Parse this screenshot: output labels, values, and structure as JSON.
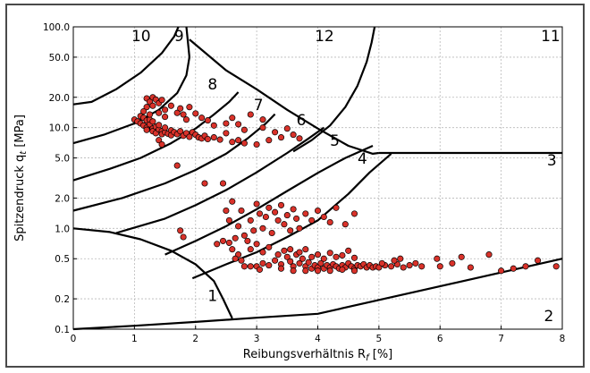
{
  "chart_data": {
    "type": "scatter",
    "title": "",
    "xlabel": "Reibungsverhältnis R",
    "xlabel_sub": "f",
    "xlabel_unit": " [%]",
    "ylabel": "Spitzendruck q",
    "ylabel_sub": "t",
    "ylabel_unit": " [MPa]",
    "xlim": [
      0,
      8
    ],
    "ylim": [
      0.1,
      100
    ],
    "yscale": "log",
    "grid": true,
    "x_ticks": [
      "0",
      "1",
      "2",
      "3",
      "4",
      "5",
      "6",
      "7",
      "8"
    ],
    "y_ticks": [
      "0.1",
      "0.2",
      "0.5",
      "1.0",
      "2.0",
      "5.0",
      "10.0",
      "20.0",
      "50.0",
      "100.0"
    ],
    "marker_color": "#d9322a",
    "zone_labels": [
      "1",
      "2",
      "3",
      "4",
      "5",
      "6",
      "7",
      "8",
      "9",
      "10",
      "11",
      "12"
    ],
    "points": [
      [
        1.0,
        12.0
      ],
      [
        1.05,
        11.5
      ],
      [
        1.1,
        11.0
      ],
      [
        1.1,
        13.0
      ],
      [
        1.15,
        10.5
      ],
      [
        1.15,
        12.5
      ],
      [
        1.2,
        11.8
      ],
      [
        1.2,
        10.0
      ],
      [
        1.2,
        9.5
      ],
      [
        1.25,
        10.8
      ],
      [
        1.25,
        12.0
      ],
      [
        1.3,
        11.5
      ],
      [
        1.3,
        9.8
      ],
      [
        1.3,
        9.2
      ],
      [
        1.35,
        10.2
      ],
      [
        1.35,
        8.8
      ],
      [
        1.4,
        9.6
      ],
      [
        1.4,
        10.6
      ],
      [
        1.45,
        9.2
      ],
      [
        1.45,
        8.6
      ],
      [
        1.5,
        9.0
      ],
      [
        1.5,
        10.0
      ],
      [
        1.55,
        8.7
      ],
      [
        1.6,
        9.4
      ],
      [
        1.6,
        8.4
      ],
      [
        1.65,
        9.0
      ],
      [
        1.7,
        8.6
      ],
      [
        1.75,
        9.2
      ],
      [
        1.8,
        8.3
      ],
      [
        1.85,
        8.8
      ],
      [
        1.9,
        8.1
      ],
      [
        1.95,
        9.0
      ],
      [
        2.0,
        8.5
      ],
      [
        2.05,
        8.0
      ],
      [
        2.1,
        7.8
      ],
      [
        2.15,
        8.3
      ],
      [
        2.2,
        7.7
      ],
      [
        2.3,
        8.0
      ],
      [
        2.4,
        7.6
      ],
      [
        2.5,
        8.8
      ],
      [
        2.6,
        7.2
      ],
      [
        2.7,
        7.5
      ],
      [
        2.8,
        7.0
      ],
      [
        3.0,
        6.8
      ],
      [
        3.2,
        7.5
      ],
      [
        3.4,
        8.0
      ],
      [
        3.6,
        8.5
      ],
      [
        3.7,
        7.8
      ],
      [
        1.2,
        19.5
      ],
      [
        1.25,
        18.0
      ],
      [
        1.3,
        20.0
      ],
      [
        1.35,
        19.0
      ],
      [
        1.4,
        17.5
      ],
      [
        1.45,
        18.8
      ],
      [
        1.3,
        16.5
      ],
      [
        1.2,
        16.0
      ],
      [
        1.15,
        14.5
      ],
      [
        1.5,
        15.0
      ],
      [
        1.6,
        16.5
      ],
      [
        1.7,
        14.0
      ],
      [
        1.75,
        15.5
      ],
      [
        1.8,
        13.5
      ],
      [
        1.9,
        16.0
      ],
      [
        2.0,
        13.8
      ],
      [
        2.1,
        12.5
      ],
      [
        1.4,
        14.0
      ],
      [
        1.25,
        13.5
      ],
      [
        1.5,
        12.8
      ],
      [
        1.85,
        12.0
      ],
      [
        2.2,
        11.8
      ],
      [
        2.3,
        10.5
      ],
      [
        2.5,
        11.0
      ],
      [
        2.6,
        12.5
      ],
      [
        2.7,
        10.8
      ],
      [
        2.8,
        9.5
      ],
      [
        3.1,
        10.0
      ],
      [
        3.3,
        9.0
      ],
      [
        3.5,
        9.8
      ],
      [
        3.1,
        12.0
      ],
      [
        2.9,
        13.5
      ],
      [
        1.4,
        7.5
      ],
      [
        1.45,
        6.8
      ],
      [
        1.7,
        4.2
      ],
      [
        2.15,
        2.8
      ],
      [
        1.75,
        0.95
      ],
      [
        1.8,
        0.82
      ],
      [
        2.45,
        2.8
      ],
      [
        2.5,
        1.5
      ],
      [
        2.55,
        1.2
      ],
      [
        2.6,
        1.85
      ],
      [
        2.7,
        1.05
      ],
      [
        2.75,
        1.5
      ],
      [
        2.8,
        0.85
      ],
      [
        2.85,
        0.75
      ],
      [
        2.9,
        1.2
      ],
      [
        2.95,
        0.95
      ],
      [
        3.0,
        1.75
      ],
      [
        3.05,
        1.4
      ],
      [
        3.1,
        1.0
      ],
      [
        3.15,
        1.3
      ],
      [
        3.2,
        1.6
      ],
      [
        3.25,
        0.9
      ],
      [
        3.3,
        1.45
      ],
      [
        3.35,
        1.2
      ],
      [
        3.4,
        1.7
      ],
      [
        3.45,
        1.1
      ],
      [
        3.5,
        1.35
      ],
      [
        3.55,
        0.95
      ],
      [
        3.6,
        1.55
      ],
      [
        3.65,
        1.25
      ],
      [
        3.7,
        1.0
      ],
      [
        3.8,
        1.4
      ],
      [
        3.9,
        1.2
      ],
      [
        4.0,
        1.5
      ],
      [
        4.1,
        1.3
      ],
      [
        4.2,
        1.15
      ],
      [
        4.3,
        1.6
      ],
      [
        4.45,
        1.1
      ],
      [
        4.6,
        1.4
      ],
      [
        2.65,
        0.8
      ],
      [
        2.55,
        0.72
      ],
      [
        2.6,
        0.62
      ],
      [
        2.7,
        0.55
      ],
      [
        2.75,
        0.48
      ],
      [
        2.65,
        0.5
      ],
      [
        2.9,
        0.62
      ],
      [
        3.0,
        0.7
      ],
      [
        3.1,
        0.58
      ],
      [
        3.2,
        0.65
      ],
      [
        2.45,
        0.75
      ],
      [
        2.35,
        0.7
      ],
      [
        3.0,
        0.42
      ],
      [
        3.1,
        0.45
      ],
      [
        3.2,
        0.43
      ],
      [
        3.3,
        0.48
      ],
      [
        3.4,
        0.44
      ],
      [
        3.5,
        0.52
      ],
      [
        3.55,
        0.47
      ],
      [
        3.6,
        0.42
      ],
      [
        3.65,
        0.55
      ],
      [
        3.7,
        0.45
      ],
      [
        3.75,
        0.5
      ],
      [
        3.8,
        0.42
      ],
      [
        3.85,
        0.46
      ],
      [
        3.9,
        0.4
      ],
      [
        3.95,
        0.43
      ],
      [
        4.0,
        0.41
      ],
      [
        4.05,
        0.45
      ],
      [
        4.1,
        0.4
      ],
      [
        4.15,
        0.43
      ],
      [
        4.2,
        0.41
      ],
      [
        4.25,
        0.44
      ],
      [
        4.3,
        0.42
      ],
      [
        4.35,
        0.4
      ],
      [
        4.4,
        0.43
      ],
      [
        4.45,
        0.41
      ],
      [
        4.5,
        0.45
      ],
      [
        4.55,
        0.42
      ],
      [
        4.6,
        0.4
      ],
      [
        4.65,
        0.43
      ],
      [
        4.7,
        0.42
      ],
      [
        4.75,
        0.44
      ],
      [
        4.8,
        0.41
      ],
      [
        4.85,
        0.43
      ],
      [
        4.9,
        0.41
      ],
      [
        4.95,
        0.42
      ],
      [
        5.0,
        0.41
      ],
      [
        5.1,
        0.43
      ],
      [
        5.2,
        0.42
      ],
      [
        5.3,
        0.44
      ],
      [
        5.4,
        0.41
      ],
      [
        5.5,
        0.43
      ],
      [
        5.6,
        0.45
      ],
      [
        5.7,
        0.42
      ],
      [
        3.9,
        0.52
      ],
      [
        4.0,
        0.55
      ],
      [
        4.1,
        0.5
      ],
      [
        4.2,
        0.57
      ],
      [
        4.3,
        0.52
      ],
      [
        4.4,
        0.54
      ],
      [
        4.5,
        0.6
      ],
      [
        4.6,
        0.51
      ],
      [
        3.35,
        0.55
      ],
      [
        3.45,
        0.6
      ],
      [
        3.55,
        0.62
      ],
      [
        3.7,
        0.58
      ],
      [
        3.8,
        0.62
      ],
      [
        3.4,
        0.4
      ],
      [
        3.6,
        0.38
      ],
      [
        3.8,
        0.38
      ],
      [
        4.0,
        0.38
      ],
      [
        4.2,
        0.38
      ],
      [
        4.4,
        0.39
      ],
      [
        4.6,
        0.38
      ],
      [
        2.8,
        0.42
      ],
      [
        2.9,
        0.42
      ],
      [
        3.05,
        0.39
      ],
      [
        6.0,
        0.42
      ],
      [
        6.2,
        0.45
      ],
      [
        6.5,
        0.41
      ],
      [
        6.8,
        0.55
      ],
      [
        7.0,
        0.38
      ],
      [
        7.2,
        0.4
      ],
      [
        7.4,
        0.42
      ],
      [
        7.6,
        0.48
      ],
      [
        7.9,
        0.42
      ],
      [
        6.35,
        0.52
      ],
      [
        5.95,
        0.5
      ],
      [
        5.25,
        0.48
      ],
      [
        5.35,
        0.5
      ],
      [
        5.05,
        0.45
      ]
    ]
  }
}
